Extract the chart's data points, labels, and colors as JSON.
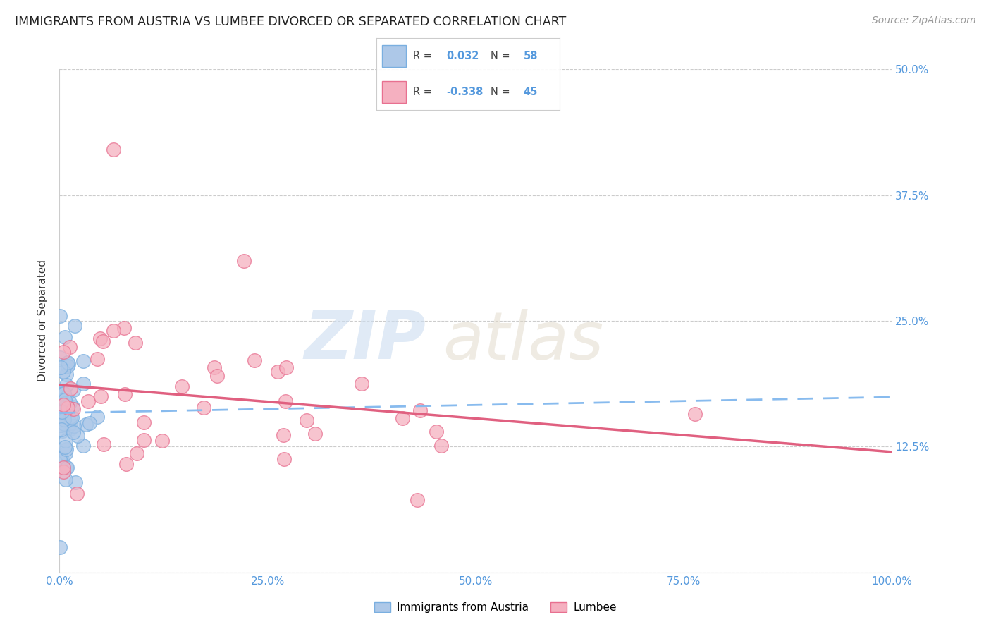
{
  "title": "IMMIGRANTS FROM AUSTRIA VS LUMBEE DIVORCED OR SEPARATED CORRELATION CHART",
  "source": "Source: ZipAtlas.com",
  "ylabel": "Divorced or Separated",
  "austria_R": 0.032,
  "austria_N": 58,
  "lumbee_R": -0.338,
  "lumbee_N": 45,
  "austria_fill": "#adc8e8",
  "austria_edge": "#7aafe0",
  "lumbee_fill": "#f5b0c0",
  "lumbee_edge": "#e87090",
  "trend_austria_color": "#88bbee",
  "trend_lumbee_color": "#e06080",
  "background_color": "#ffffff",
  "grid_color": "#cccccc",
  "xlim": [
    0,
    1.0
  ],
  "ylim": [
    0,
    0.5
  ],
  "xticks": [
    0.0,
    0.25,
    0.5,
    0.75,
    1.0
  ],
  "xtick_labels": [
    "0.0%",
    "25.0%",
    "50.0%",
    "75.0%",
    "100.0%"
  ],
  "yticks": [
    0.0,
    0.125,
    0.25,
    0.375,
    0.5
  ],
  "ytick_labels_right": [
    "",
    "12.5%",
    "25.0%",
    "37.5%",
    "50.0%"
  ],
  "tick_color": "#5599dd",
  "watermark_zip_color": "#ccddf0",
  "watermark_atlas_color": "#e0d8c8"
}
